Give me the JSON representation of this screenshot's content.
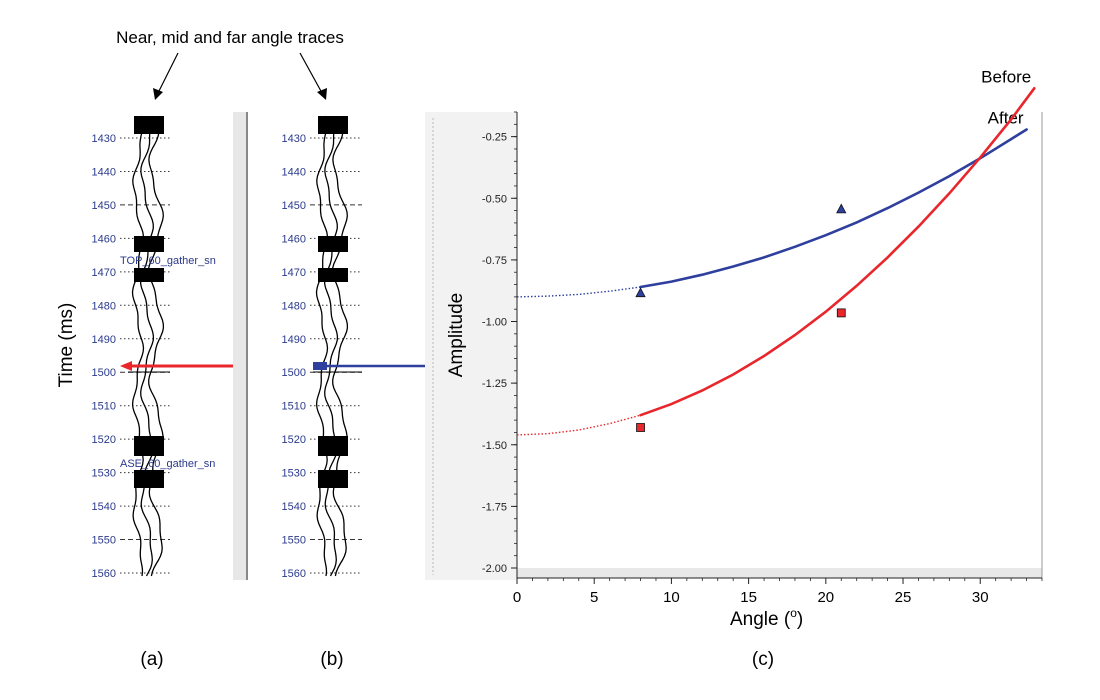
{
  "annotation": {
    "text": "Near, mid and far angle traces"
  },
  "panel_labels": [
    "(a)",
    "(b)",
    "(c)"
  ],
  "time_axis": {
    "title": "Time (ms)",
    "ticks": [
      1430,
      1440,
      1450,
      1460,
      1470,
      1480,
      1490,
      1500,
      1510,
      1520,
      1530,
      1540,
      1550,
      1560
    ]
  },
  "horizons": {
    "top": "TOP_60_gather_sn",
    "base": "ASE_60_gather_sn"
  },
  "markers": {
    "time_ms": 1498,
    "panel_a_color": "#e8262b",
    "panel_b_color": "#2e3f9e"
  },
  "chart_data": {
    "type": "line",
    "xlabel": "Angle (",
    "xlabel_sup": "o",
    "xlabel_close": ")",
    "ylabel": "Amplitude",
    "xlim": [
      0,
      34
    ],
    "ylim": [
      -2.0,
      -0.15
    ],
    "xticks": [
      0,
      5,
      10,
      15,
      20,
      25,
      30
    ],
    "yticks": [
      -0.25,
      -0.5,
      -0.75,
      -1.0,
      -1.25,
      -1.5,
      -1.75,
      -2.0
    ],
    "ytick_labels": [
      "-0.25",
      "-0.50",
      "-0.75",
      "-1.00",
      "-1.25",
      "-1.50",
      "-1.75",
      "-2.00"
    ],
    "series": [
      {
        "name": "After",
        "color": "#2e3f9e",
        "marker": "triangle",
        "curve_x": [
          0,
          2,
          4,
          6,
          8,
          10,
          12,
          14,
          16,
          18,
          20,
          22,
          24,
          26,
          28,
          30,
          32,
          33
        ],
        "curve_y": [
          -0.9,
          -0.897,
          -0.89,
          -0.877,
          -0.86,
          -0.838,
          -0.81,
          -0.777,
          -0.74,
          -0.697,
          -0.65,
          -0.598,
          -0.54,
          -0.477,
          -0.41,
          -0.338,
          -0.26,
          -0.221
        ],
        "extrapolated_until_x": 8,
        "points": [
          {
            "x": 8,
            "y": -0.885
          },
          {
            "x": 21,
            "y": -0.545
          }
        ]
      },
      {
        "name": "Before",
        "color": "#e8262b",
        "marker": "square",
        "curve_x": [
          0,
          2,
          4,
          6,
          8,
          10,
          12,
          14,
          16,
          18,
          20,
          22,
          24,
          26,
          28,
          30,
          32,
          33.5
        ],
        "curve_y": [
          -1.46,
          -1.455,
          -1.44,
          -1.414,
          -1.38,
          -1.335,
          -1.28,
          -1.215,
          -1.14,
          -1.055,
          -0.96,
          -0.855,
          -0.74,
          -0.615,
          -0.48,
          -0.335,
          -0.18,
          -0.054
        ],
        "extrapolated_until_x": 8,
        "points": [
          {
            "x": 8,
            "y": -1.43
          },
          {
            "x": 21,
            "y": -0.965
          }
        ]
      }
    ]
  }
}
